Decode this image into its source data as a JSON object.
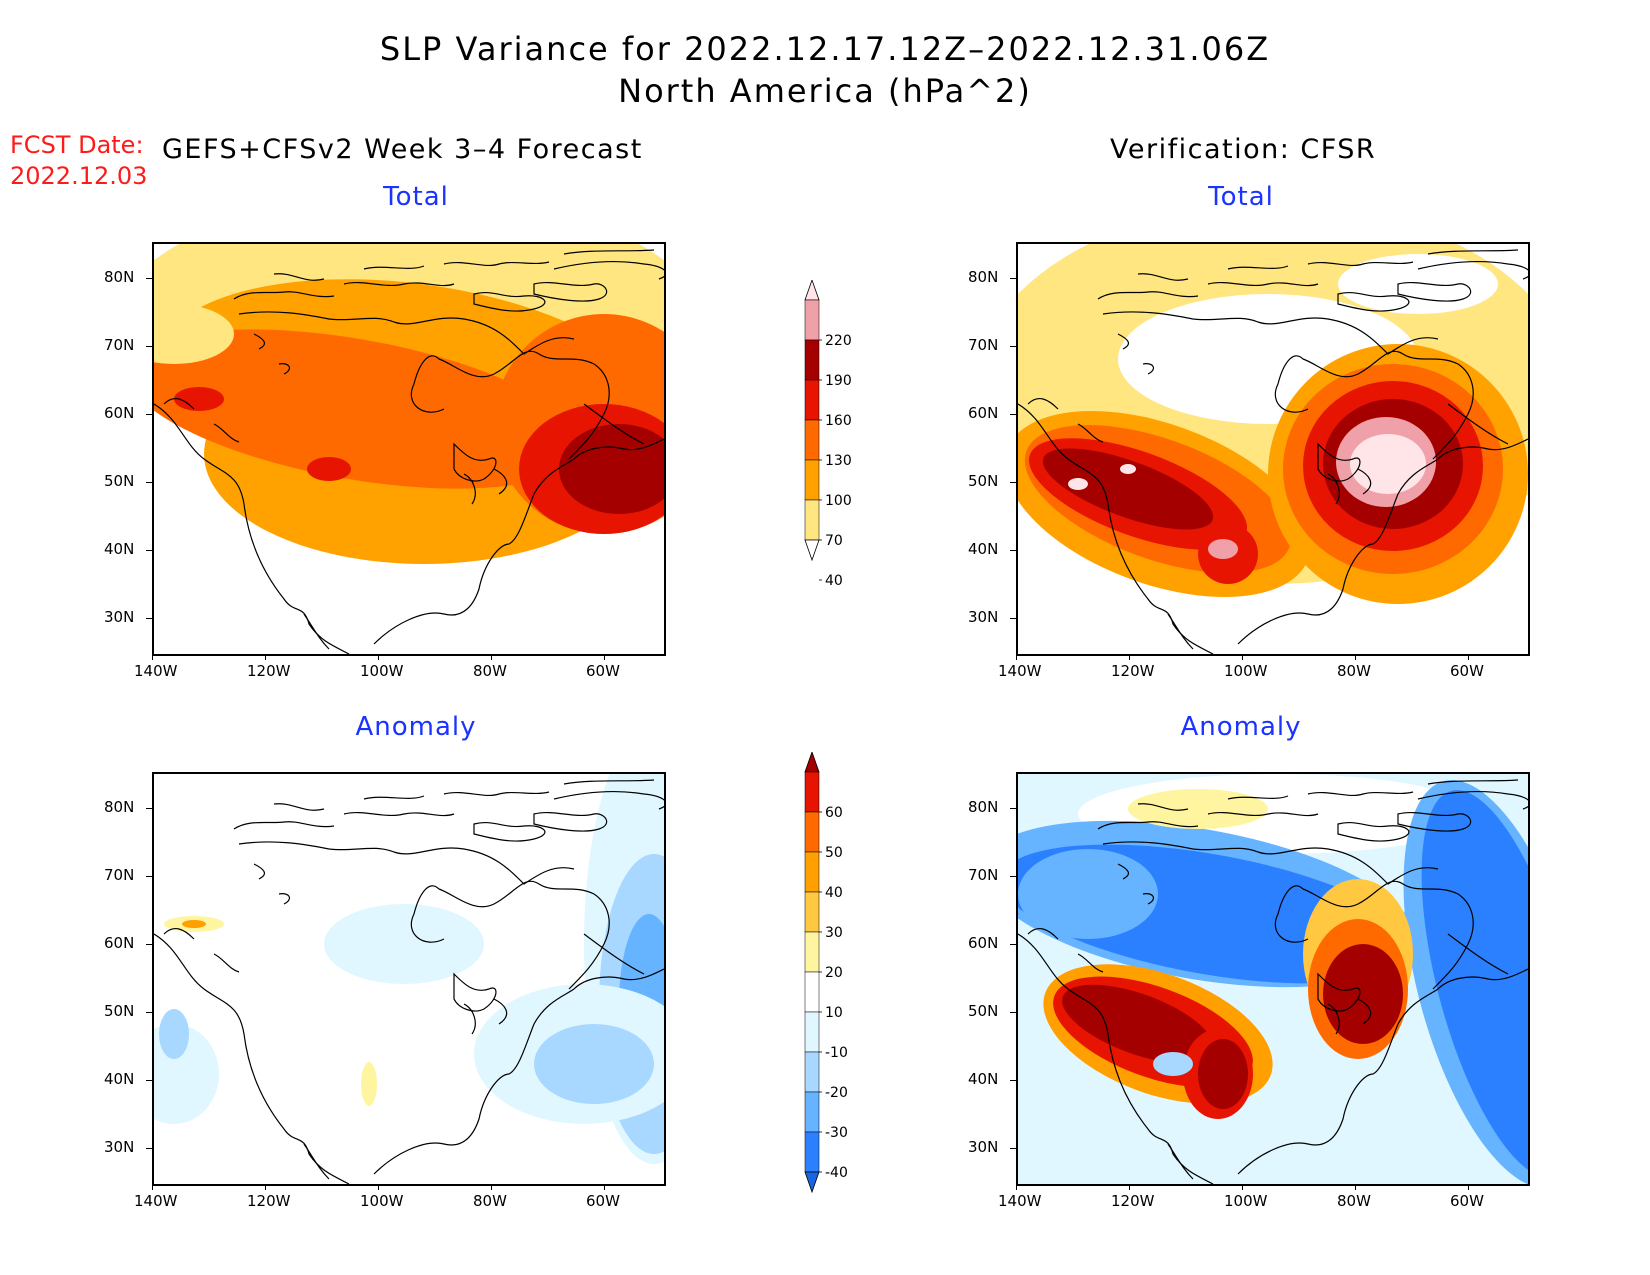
{
  "title_line1": "SLP Variance for 2022.12.17.12Z–2022.12.31.06Z",
  "title_line2": "North America (hPa^2)",
  "fcst_label": "FCST Date:",
  "fcst_date": "2022.12.03",
  "forecast_header": "GEFS+CFSv2 Week 3–4 Forecast",
  "verification_header": "Verification: CFSR",
  "panel_labels": {
    "total": "Total",
    "anomaly": "Anomaly"
  },
  "lat_ticks": [
    "80N",
    "70N",
    "60N",
    "50N",
    "40N",
    "30N"
  ],
  "lon_ticks": [
    "140W",
    "120W",
    "100W",
    "80W",
    "60W"
  ],
  "total_colorbar": {
    "levels": [
      "40",
      "70",
      "100",
      "130",
      "160",
      "190",
      "220"
    ],
    "colors": [
      "#ffffff",
      "#ffe680",
      "#ffa200",
      "#ff6a00",
      "#e61400",
      "#a50000",
      "#f0a0a8",
      "#ffe5e8"
    ]
  },
  "anomaly_colorbar": {
    "levels": [
      "-40",
      "-30",
      "-20",
      "-10",
      "10",
      "20",
      "30",
      "40",
      "50",
      "60"
    ],
    "colors": [
      "#1a66e0",
      "#2b80ff",
      "#66b3ff",
      "#a8d8ff",
      "#e0f7ff",
      "#ffffff",
      "#fff5a0",
      "#ffc840",
      "#ff9f00",
      "#ff6a00",
      "#e61400",
      "#a50000"
    ]
  },
  "coastline_color": "#000000"
}
